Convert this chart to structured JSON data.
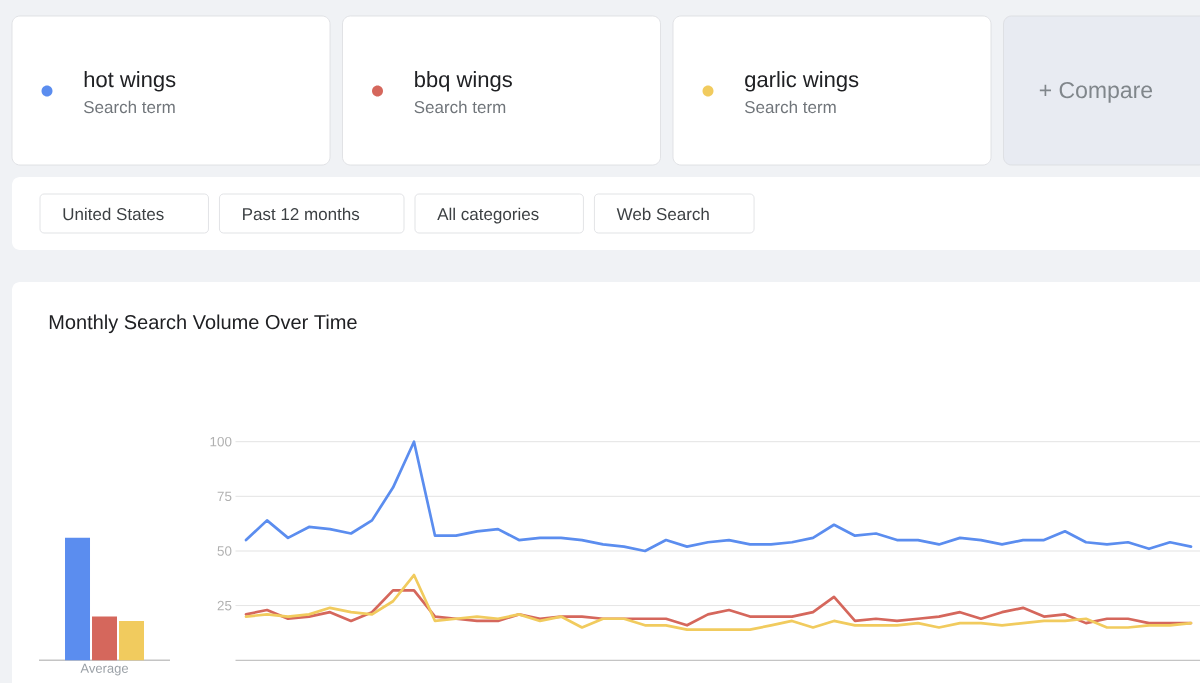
{
  "chart_data": [
    {
      "type": "other",
      "annotations": [
        "Search term",
        "Search term",
        "Search term",
        "+ Compare",
        "United States",
        "Past 12 months",
        "All categories",
        "Web Search"
      ]
    },
    {
      "type": "bar",
      "categories": [
        "Average"
      ],
      "series": [
        {
          "color": "#5b8def",
          "values": [
            56
          ]
        },
        {
          "color": "#d5675c",
          "values": [
            20
          ]
        },
        {
          "color": "#f1cb5e",
          "values": [
            18
          ]
        }
      ],
      "ylim": [
        0,
        100
      ],
      "tick_labels": "x"
    },
    {
      "type": "line",
      "title": "Monthly Search Volume Over Time",
      "categories": [
        null,
        null,
        null,
        null,
        null,
        null,
        null,
        null,
        null,
        null,
        null,
        null,
        null,
        null,
        null,
        null,
        null,
        null,
        null,
        null,
        null,
        null,
        null,
        null,
        null,
        null,
        null,
        null,
        null,
        null,
        null,
        null,
        null,
        null,
        null,
        null,
        null,
        null,
        null,
        null,
        null,
        null,
        null,
        null,
        null,
        null
      ],
      "series": [
        {
          "name": "hot wings",
          "color": "#5b8def",
          "values": [
            55,
            64,
            56,
            61,
            60,
            58,
            64,
            79,
            100,
            57,
            57,
            59,
            60,
            55,
            56,
            56,
            55,
            53,
            52,
            50,
            55,
            52,
            54,
            55,
            53,
            53,
            54,
            56,
            62,
            57,
            58,
            55,
            55,
            53,
            56,
            55,
            53,
            55,
            55,
            59,
            54,
            53,
            54,
            51,
            54,
            52
          ]
        },
        {
          "name": "bbq wings",
          "color": "#d5675c",
          "values": [
            21,
            23,
            19,
            20,
            22,
            18,
            22,
            32,
            32,
            20,
            19,
            18,
            18,
            21,
            19,
            20,
            20,
            19,
            19,
            19,
            19,
            16,
            21,
            23,
            20,
            20,
            20,
            22,
            29,
            18,
            19,
            18,
            19,
            20,
            22,
            19,
            22,
            24,
            20,
            21,
            17,
            19,
            19,
            17,
            17,
            17
          ]
        },
        {
          "name": "garlic wings",
          "color": "#f1cb5e",
          "values": [
            20,
            21,
            20,
            21,
            24,
            22,
            21,
            27,
            39,
            18,
            19,
            20,
            19,
            21,
            18,
            20,
            15,
            19,
            19,
            16,
            16,
            14,
            14,
            14,
            14,
            16,
            18,
            15,
            18,
            16,
            16,
            16,
            17,
            15,
            17,
            17,
            16,
            17,
            18,
            18,
            19,
            15,
            15,
            16,
            16,
            17
          ]
        }
      ],
      "ylim": [
        0,
        100
      ],
      "yticks": [
        25,
        50,
        75,
        100
      ],
      "grid": "y",
      "legend": "top"
    }
  ]
}
